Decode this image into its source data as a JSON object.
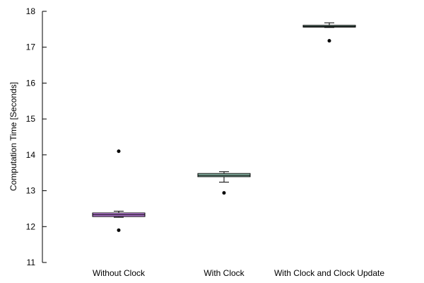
{
  "chart_data": {
    "type": "box",
    "title": "",
    "xlabel": "",
    "ylabel": "Computation Time [Seconds]",
    "ylim": [
      11,
      18
    ],
    "yticks": [
      "11",
      "12",
      "13",
      "14",
      "15",
      "16",
      "17",
      "18"
    ],
    "grid": false,
    "categories": [
      "Without Clock",
      "With Clock",
      "With Clock and Clock Update"
    ],
    "boxes": [
      {
        "label": "Without Clock",
        "color": "#cc88ee",
        "whisker_low": 12.26,
        "q1": 12.28,
        "median": 12.33,
        "q3": 12.38,
        "whisker_high": 12.43,
        "outliers": [
          14.1,
          11.9
        ]
      },
      {
        "label": "With Clock",
        "color": "#a6dcc8",
        "whisker_low": 13.24,
        "q1": 13.39,
        "median": 13.43,
        "q3": 13.48,
        "whisker_high": 13.53,
        "outliers": [
          12.94
        ]
      },
      {
        "label": "With Clock and Clock Update",
        "color": "#a6dcc8",
        "whisker_low": 17.55,
        "q1": 17.56,
        "median": 17.58,
        "q3": 17.61,
        "whisker_high": 17.68,
        "outliers": [
          17.18
        ]
      }
    ]
  }
}
